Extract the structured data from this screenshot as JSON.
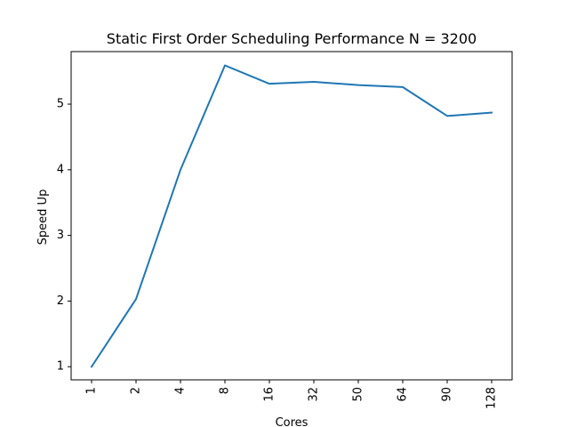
{
  "chart_data": {
    "type": "line",
    "title": "Static First Order Scheduling Performance N = 3200",
    "xlabel": "Cores",
    "ylabel": "Speed Up",
    "categories": [
      "1",
      "2",
      "4",
      "8",
      "16",
      "32",
      "50",
      "64",
      "90",
      "128"
    ],
    "series": [
      {
        "values": [
          1.0,
          2.03,
          4.0,
          5.59,
          5.31,
          5.34,
          5.29,
          5.26,
          4.82,
          4.87
        ],
        "color": "#1f77b4"
      }
    ],
    "ylim": [
      0.8,
      5.8
    ],
    "yticks": [
      1,
      2,
      3,
      4,
      5
    ],
    "grid": false
  }
}
